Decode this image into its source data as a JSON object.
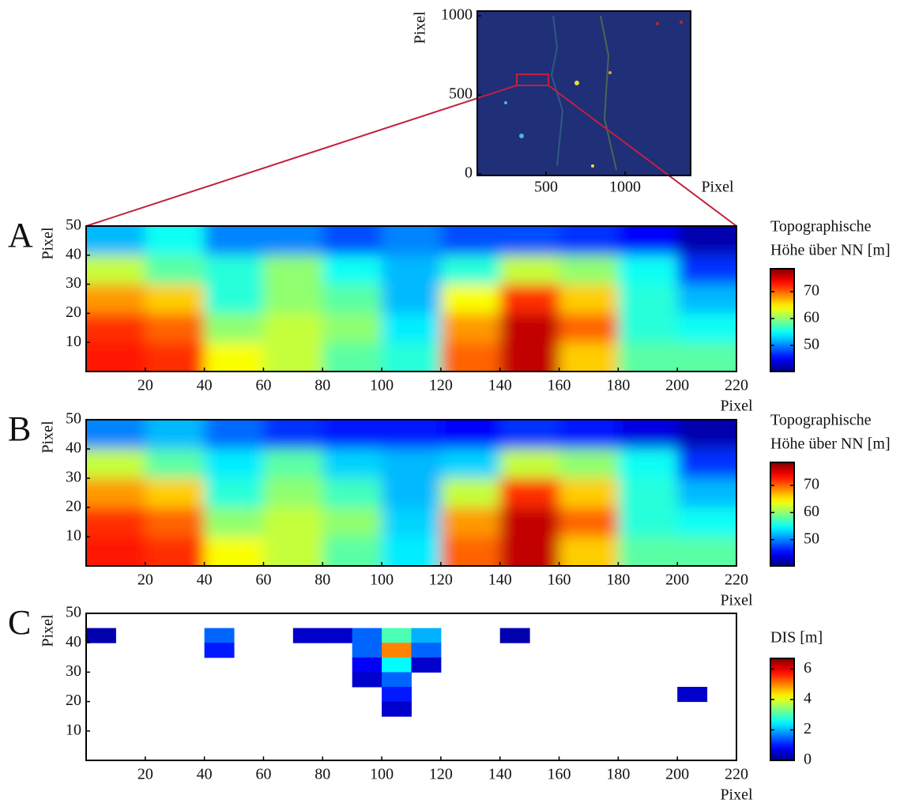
{
  "chart_data": [
    {
      "type": "image",
      "xlabel": "Pixel",
      "ylabel": "Pixel",
      "xlim": [
        65,
        1415
      ],
      "ylim": [
        -10,
        1030
      ],
      "xticks": [
        500,
        1000
      ],
      "yticks": [
        0,
        500,
        1000
      ]
    },
    {
      "type": "heatmap",
      "label": "A",
      "xlabel": "Pixel",
      "ylabel": "Pixel",
      "xlim": [
        0,
        220
      ],
      "ylim": [
        0,
        50
      ],
      "xticks": [
        20,
        40,
        60,
        80,
        100,
        120,
        140,
        160,
        180,
        200,
        220
      ],
      "yticks": [
        10,
        20,
        30,
        40,
        50
      ],
      "x": [
        10,
        30,
        50,
        70,
        90,
        110,
        130,
        150,
        170,
        190,
        210
      ],
      "y": [
        45,
        35,
        25,
        15,
        5
      ],
      "z": [
        [
          52,
          55,
          50,
          50,
          48,
          50,
          48,
          48,
          47,
          45,
          42
        ],
        [
          62,
          58,
          56,
          60,
          55,
          52,
          56,
          62,
          60,
          55,
          47
        ],
        [
          68,
          66,
          56,
          60,
          58,
          52,
          64,
          72,
          66,
          56,
          52
        ],
        [
          72,
          70,
          60,
          62,
          60,
          54,
          68,
          76,
          70,
          56,
          55
        ],
        [
          73,
          72,
          64,
          62,
          58,
          56,
          70,
          76,
          66,
          58,
          58
        ]
      ],
      "colormap": "jet",
      "clim": [
        40.3,
        78.5
      ],
      "colorbar_title": [
        "Topographische",
        "Höhe über NN [m]"
      ],
      "colorbar_ticks": [
        50,
        60,
        70
      ]
    },
    {
      "type": "heatmap",
      "label": "B",
      "xlabel": "Pixel",
      "ylabel": "Pixel",
      "xlim": [
        0,
        220
      ],
      "ylim": [
        0,
        50
      ],
      "xticks": [
        20,
        40,
        60,
        80,
        100,
        120,
        140,
        160,
        180,
        200,
        220
      ],
      "yticks": [
        10,
        20,
        30,
        40,
        50
      ],
      "x": [
        10,
        30,
        50,
        70,
        90,
        110,
        130,
        150,
        170,
        190,
        210
      ],
      "y": [
        45,
        35,
        25,
        15,
        5
      ],
      "z": [
        [
          50,
          52,
          49,
          47,
          46,
          46,
          45,
          47,
          46,
          44,
          42
        ],
        [
          62,
          58,
          54,
          58,
          53,
          52,
          53,
          62,
          60,
          55,
          47
        ],
        [
          68,
          66,
          56,
          60,
          57,
          52,
          62,
          72,
          66,
          56,
          52
        ],
        [
          72,
          70,
          60,
          62,
          60,
          53,
          68,
          76,
          70,
          56,
          55
        ],
        [
          73,
          72,
          64,
          62,
          58,
          54,
          70,
          76,
          66,
          58,
          58
        ]
      ],
      "colormap": "jet",
      "clim": [
        40.3,
        78.5
      ],
      "colorbar_title": [
        "Topographische",
        "Höhe über NN [m]"
      ],
      "colorbar_ticks": [
        50,
        60,
        70
      ]
    },
    {
      "type": "heatmap",
      "label": "C",
      "xlabel": "Pixel",
      "ylabel": "Pixel",
      "xlim": [
        0,
        220
      ],
      "ylim": [
        0,
        50
      ],
      "xticks": [
        20,
        40,
        60,
        80,
        100,
        120,
        140,
        160,
        180,
        200,
        220
      ],
      "yticks": [
        10,
        20,
        30,
        40,
        50
      ],
      "x": [
        5,
        15,
        25,
        35,
        45,
        55,
        65,
        75,
        85,
        95,
        105,
        115,
        125,
        135,
        145,
        155,
        165,
        175,
        185,
        195,
        205,
        215
      ],
      "y": [
        47.5,
        42.5,
        37.5,
        32.5,
        27.5,
        22.5,
        17.5,
        12.5,
        7.5,
        2.5
      ],
      "z": [
        [
          null,
          null,
          null,
          null,
          null,
          null,
          null,
          null,
          null,
          null,
          null,
          null,
          null,
          null,
          null,
          null,
          null,
          null,
          null,
          null,
          null,
          null
        ],
        [
          0.3,
          null,
          null,
          null,
          1.5,
          null,
          null,
          0.5,
          0.5,
          1.5,
          3,
          2,
          null,
          null,
          0.3,
          null,
          null,
          null,
          null,
          null,
          null,
          null
        ],
        [
          null,
          null,
          null,
          null,
          1,
          null,
          null,
          null,
          null,
          1.5,
          5,
          1.5,
          null,
          null,
          null,
          null,
          null,
          null,
          null,
          null,
          null,
          null
        ],
        [
          null,
          null,
          null,
          null,
          null,
          null,
          null,
          null,
          null,
          0.8,
          2.5,
          0.5,
          null,
          null,
          null,
          null,
          null,
          null,
          null,
          null,
          null,
          null
        ],
        [
          null,
          null,
          null,
          null,
          null,
          null,
          null,
          null,
          null,
          0.5,
          1.5,
          null,
          null,
          null,
          null,
          null,
          null,
          null,
          null,
          null,
          null,
          null
        ],
        [
          null,
          null,
          null,
          null,
          null,
          null,
          null,
          null,
          null,
          null,
          1,
          null,
          null,
          null,
          null,
          null,
          null,
          null,
          null,
          null,
          0.5,
          null
        ],
        [
          null,
          null,
          null,
          null,
          null,
          null,
          null,
          null,
          null,
          null,
          0.5,
          null,
          null,
          null,
          null,
          null,
          null,
          null,
          null,
          null,
          null,
          null
        ],
        [
          null,
          null,
          null,
          null,
          null,
          null,
          null,
          null,
          null,
          null,
          null,
          null,
          null,
          null,
          null,
          null,
          null,
          null,
          null,
          null,
          null,
          null
        ],
        [
          null,
          null,
          null,
          null,
          null,
          null,
          null,
          null,
          null,
          null,
          null,
          null,
          null,
          null,
          null,
          null,
          null,
          null,
          null,
          null,
          null,
          null
        ],
        [
          null,
          null,
          null,
          null,
          null,
          null,
          null,
          null,
          null,
          null,
          null,
          null,
          null,
          null,
          null,
          null,
          null,
          null,
          null,
          null,
          null,
          null
        ]
      ],
      "colormap": "jet",
      "clim": [
        0,
        6.7
      ],
      "colorbar_title": [
        "DIS [m]"
      ],
      "colorbar_ticks": [
        0,
        2,
        4,
        6
      ]
    }
  ]
}
